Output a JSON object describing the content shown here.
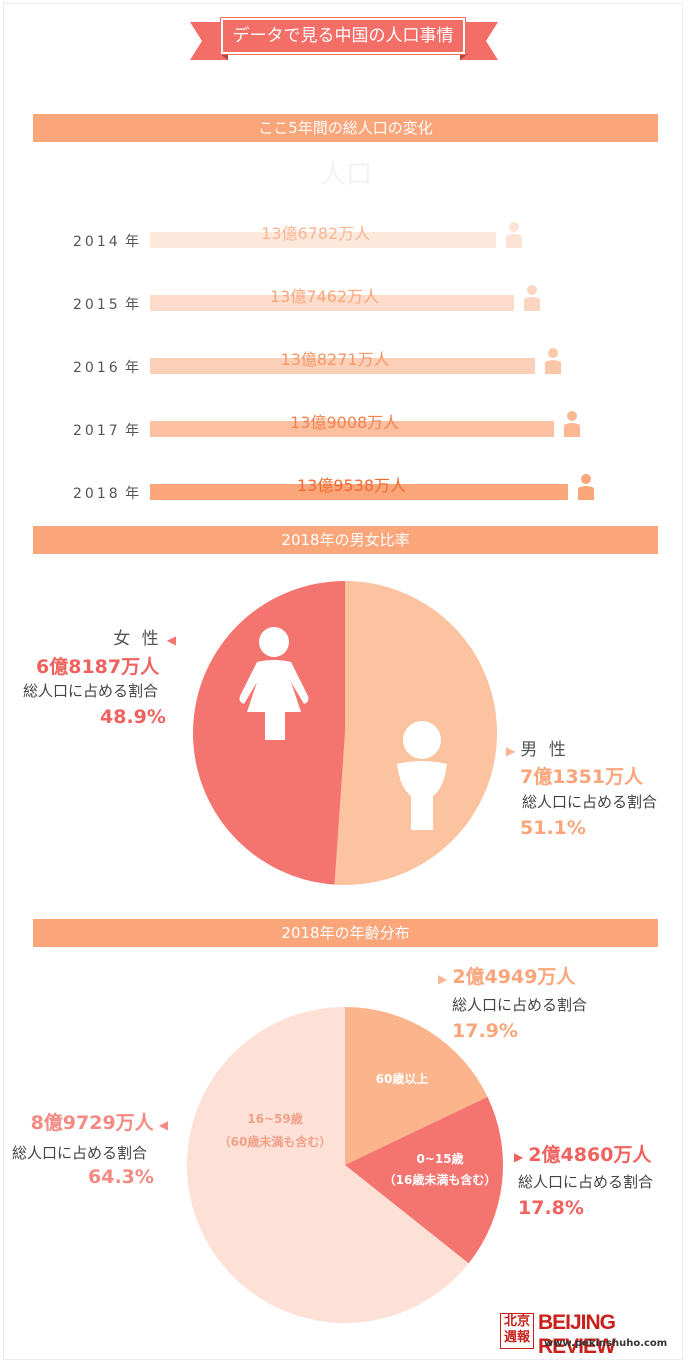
{
  "page_title": "データで見る中国の人口事情",
  "sections": {
    "population": "ここ5年間の総人口の変化",
    "gender": "2018年の男女比率",
    "age": "2018年の年齢分布"
  },
  "year_suffix": "年",
  "population_rows": [
    {
      "year": "2014",
      "label": "13億6782万人"
    },
    {
      "year": "2015",
      "label": "13億7462万人"
    },
    {
      "year": "2016",
      "label": "13億8271万人"
    },
    {
      "year": "2017",
      "label": "13億9008万人"
    },
    {
      "year": "2018",
      "label": "13億9538万人"
    }
  ],
  "gender": {
    "female": {
      "name": "女 性",
      "value": "6億8187万人",
      "caption": "総人口に占める割合",
      "percent": "48.9%"
    },
    "male": {
      "name": "男 性",
      "value": "7億1351万人",
      "caption": "総人口に占める割合",
      "percent": "51.1%"
    }
  },
  "age": {
    "senior": {
      "slice": "60歳以上",
      "value": "2億4949万人",
      "caption": "総人口に占める割合",
      "percent": "17.9%"
    },
    "child": {
      "slice_line1": "0~15歳",
      "slice_line2": "（16歳未満も含む）",
      "value": "2億4860万人",
      "caption": "総人口に占める割合",
      "percent": "17.8%"
    },
    "working": {
      "slice_line1": "16~59歳",
      "slice_line2": "（60歳未満も含む）",
      "value": "8億9729万人",
      "caption": "総人口に占める割合",
      "percent": "64.3%"
    }
  },
  "logo": {
    "chinese": "北京週報",
    "name": "BEIJING REVIEW",
    "url": "www.pekinshuho.com"
  },
  "colors": {
    "bar_header": "#fba57a",
    "title_red": "#f46e68",
    "female": "#f47570",
    "male": "#fcc3a1",
    "age_working": "#fde0d6",
    "age_child": "#f47570",
    "age_senior": "#fcb48c"
  },
  "chart_data": [
    {
      "type": "bar",
      "title": "ここ5年間の総人口の変化",
      "categories": [
        "2014",
        "2015",
        "2016",
        "2017",
        "2018"
      ],
      "values": [
        136782,
        137462,
        138271,
        139008,
        139538
      ],
      "unit": "万人"
    },
    {
      "type": "pie",
      "title": "2018年の男女比率",
      "labels": [
        "女 性",
        "男 性"
      ],
      "values": [
        48.9,
        51.1
      ]
    },
    {
      "type": "pie",
      "title": "2018年の年齢分布",
      "labels": [
        "60歳以上",
        "0~15歳",
        "16~59歳"
      ],
      "values": [
        17.9,
        17.8,
        64.3
      ]
    }
  ]
}
